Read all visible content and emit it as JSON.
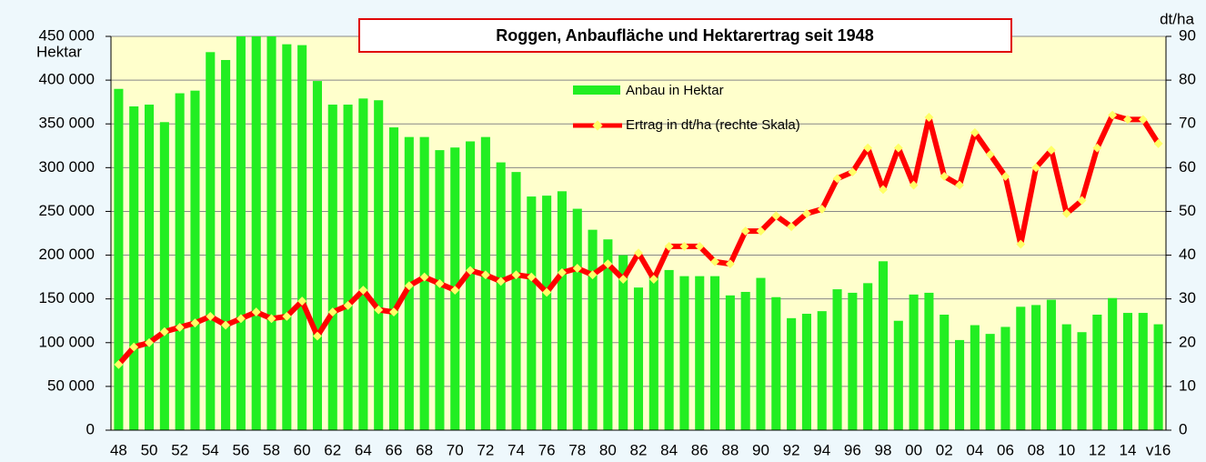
{
  "chart_data": {
    "type": "bar_line",
    "title": "Roggen, Anbaufläche und Hektarertrag seit 1948",
    "y_label": "Hektar",
    "y2_label": "dt/ha",
    "categories": [
      "48",
      null,
      "50",
      null,
      "52",
      null,
      "54",
      null,
      "56",
      null,
      "58",
      null,
      "60",
      null,
      "62",
      null,
      "64",
      null,
      "66",
      null,
      "68",
      null,
      "70",
      null,
      "72",
      null,
      "74",
      null,
      "76",
      null,
      "78",
      null,
      "80",
      null,
      "82",
      null,
      "84",
      null,
      "86",
      null,
      "88",
      null,
      "90",
      null,
      "92",
      null,
      "94",
      null,
      "96",
      null,
      "98",
      null,
      "00",
      null,
      "02",
      null,
      "04",
      null,
      "06",
      null,
      "08",
      null,
      "10",
      null,
      "12",
      null,
      "14",
      null,
      "v16"
    ],
    "series": [
      {
        "name": "Anbau in Hektar",
        "color": "#22ee22",
        "axis": "y",
        "kind": "bar",
        "values": [
          390000,
          370000,
          372000,
          352000,
          385000,
          388000,
          432000,
          423000,
          450000,
          450000,
          450000,
          441000,
          440000,
          399000,
          372000,
          372000,
          379000,
          377000,
          346000,
          335000,
          335000,
          320000,
          323000,
          330000,
          335000,
          306000,
          295000,
          267000,
          268000,
          273000,
          253000,
          229000,
          218000,
          200000,
          163000,
          180000,
          183000,
          176000,
          176000,
          176000,
          154000,
          158000,
          174000,
          152000,
          128000,
          133000,
          136000,
          161000,
          157000,
          168000,
          193000,
          125000,
          155000,
          157000,
          132000,
          103000,
          120000,
          110000,
          118000,
          141000,
          143000,
          149000,
          121000,
          112000,
          132000,
          151000,
          134000,
          134000,
          121000
        ]
      },
      {
        "name": "Ertrag in dt/ha (rechte Skala)",
        "color": "#ff0000",
        "marker_color": "#ffff66",
        "axis": "y2",
        "kind": "line",
        "values": [
          15,
          19,
          20,
          22.5,
          23.5,
          24.5,
          26,
          24,
          25.5,
          27,
          25.5,
          26,
          29.5,
          21.5,
          27,
          28.5,
          32,
          27.5,
          27,
          33,
          35,
          33.5,
          32,
          36.5,
          35.5,
          34,
          35.5,
          35,
          31.5,
          36,
          37,
          35.5,
          38,
          34.5,
          40.5,
          34.5,
          42,
          42,
          42,
          38.5,
          38,
          45.5,
          45.5,
          49,
          46.5,
          49.5,
          50.5,
          57.5,
          59,
          64.5,
          55,
          64.5,
          56,
          71.5,
          58,
          56,
          68,
          63,
          58,
          42.5,
          60,
          64,
          49.5,
          52.5,
          64.5,
          72,
          71,
          71,
          65.5
        ]
      }
    ],
    "ylim": [
      0,
      450000
    ],
    "yticks": [
      0,
      {
        "value": 50000,
        "label": "50 000"
      },
      {
        "value": 100000,
        "label": "100 000"
      },
      {
        "value": 150000,
        "label": "150 000"
      },
      {
        "value": 200000,
        "label": "200 000"
      },
      {
        "value": 250000,
        "label": "250 000"
      },
      {
        "value": 300000,
        "label": "300 000"
      },
      {
        "value": 350000,
        "label": "350 000"
      },
      {
        "value": 400000,
        "label": "400 000"
      },
      {
        "value": 450000,
        "label": "450 000"
      }
    ],
    "y2lim": [
      0,
      90
    ],
    "y2ticks": [
      0,
      10,
      20,
      30,
      40,
      50,
      60,
      70,
      80,
      90
    ],
    "grid": true,
    "plot_background": "#ffffcc"
  }
}
